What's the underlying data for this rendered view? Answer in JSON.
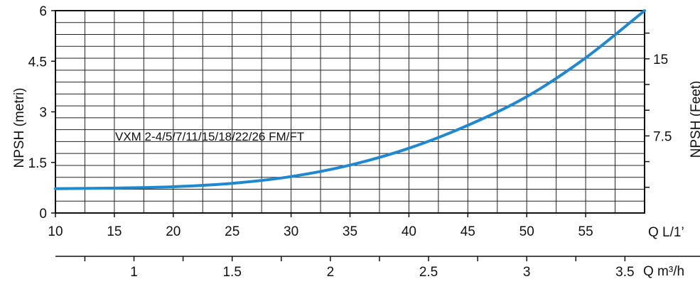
{
  "chart_data": {
    "type": "line",
    "annotation": "VXM 2-4/5/7/11/15/18/22/26 FM/FT",
    "ylabel_left": "NPSH (metri)",
    "ylabel_right": "NPSH (Feet)",
    "xlabel_primary": "Q L/1’",
    "xlabel_secondary": "Q m³/h",
    "ylim": [
      0,
      6
    ],
    "xlim": [
      10,
      60
    ],
    "y_ticks_left": [
      "0",
      "1.5",
      "3",
      "4.5",
      "6"
    ],
    "y_tick_values_left": [
      0,
      1.5,
      3,
      4.5,
      6
    ],
    "y_ticks_right": [
      "7.5",
      "15"
    ],
    "y_tick_values_right": [
      7.5,
      15
    ],
    "x_ticks_primary": [
      "10",
      "15",
      "20",
      "25",
      "30",
      "35",
      "40",
      "45",
      "50",
      "55"
    ],
    "x_tick_values_primary": [
      10,
      15,
      20,
      25,
      30,
      35,
      40,
      45,
      50,
      55
    ],
    "x_ticks_secondary": [
      "1",
      "1.5",
      "2",
      "2.5",
      "3",
      "3.5"
    ],
    "x_tick_values_secondary": [
      1,
      1.5,
      2,
      2.5,
      3,
      3.5
    ],
    "grid": true,
    "series": [
      {
        "x": [
          10,
          15,
          20,
          25,
          30,
          35,
          40,
          45,
          50,
          55,
          60
        ],
        "y": [
          0.72,
          0.74,
          0.78,
          0.88,
          1.08,
          1.42,
          1.92,
          2.6,
          3.45,
          4.6,
          6.0
        ],
        "color": "#1e88d0"
      }
    ]
  }
}
